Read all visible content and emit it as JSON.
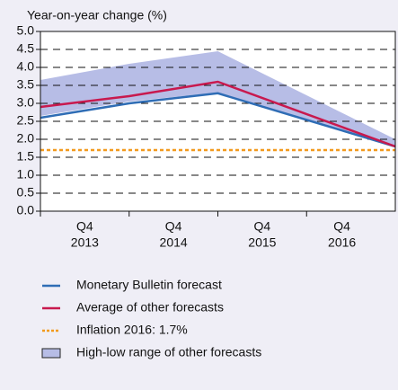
{
  "chart_data": {
    "type": "line",
    "title": "Year-on-year change (%)",
    "categories": [
      [
        "Q4",
        "2013"
      ],
      [
        "Q4",
        "2014"
      ],
      [
        "Q4",
        "2015"
      ],
      [
        "Q4",
        "2016"
      ]
    ],
    "ylim": [
      0,
      5
    ],
    "yticks": [
      {
        "value": 0,
        "label": "0.0"
      },
      0.5,
      {
        "value": 1,
        "label": "1.0"
      },
      1.5,
      {
        "value": 2,
        "label": "2.0"
      },
      2.5,
      {
        "value": 3,
        "label": "3.0"
      },
      3.5,
      {
        "value": 4,
        "label": "4.0"
      },
      4.5,
      {
        "value": 5,
        "label": "5.0"
      }
    ],
    "grid": true,
    "range": {
      "name": "High-low range of other forecasts",
      "color": "#b7bde6",
      "high": [
        3.65,
        4.1,
        4.45,
        2.0
      ],
      "low": [
        2.65,
        3.05,
        3.3,
        1.8
      ]
    },
    "series": [
      {
        "name": "Monetary Bulletin forecast",
        "color": "#2f6db5",
        "values": [
          2.6,
          3.0,
          3.28,
          1.8
        ]
      },
      {
        "name": "Average of other forecasts",
        "color": "#c8194e",
        "values": [
          2.9,
          3.2,
          3.6,
          1.8
        ]
      }
    ],
    "reference": {
      "name": "Inflation 2016: 1.7%",
      "value": 1.7,
      "color": "#f29a1e"
    }
  }
}
